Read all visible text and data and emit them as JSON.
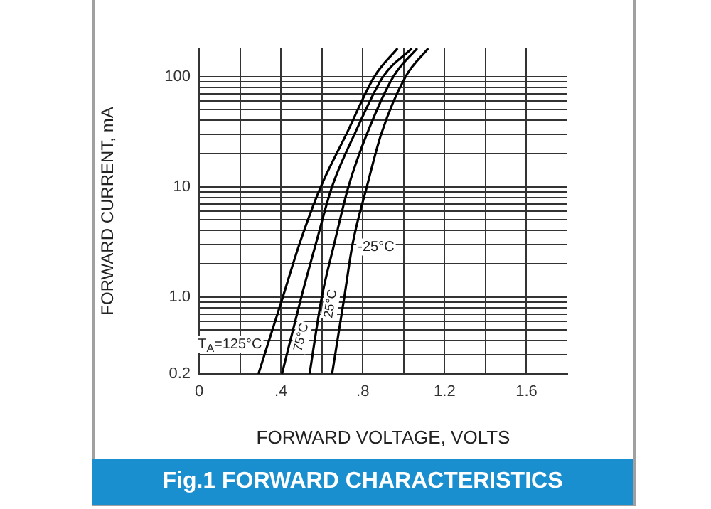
{
  "chart_data": {
    "type": "line",
    "title": "Fig.1 FORWARD CHARACTERISTICS",
    "xlabel": "FORWARD VOLTAGE, VOLTS",
    "ylabel": "FORWARD CURRENT, mA",
    "log": "y",
    "grid": true,
    "legend": false,
    "marker": "none",
    "line_style": "solid",
    "xlim": [
      0,
      1.8
    ],
    "xticks": [
      0,
      {
        "value": 0.2,
        "label": null
      },
      {
        "value": 0.4,
        "label": ".4"
      },
      {
        "value": 0.6,
        "label": null
      },
      {
        "value": 0.8,
        "label": ".8"
      },
      {
        "value": 1.0,
        "label": null
      },
      1.2,
      {
        "value": 1.4,
        "label": null
      },
      1.6
    ],
    "ylim": [
      0.2,
      180
    ],
    "yticks": [
      0.2,
      {
        "value": 0.3,
        "label": null
      },
      {
        "value": 0.4,
        "label": null
      },
      {
        "value": 0.5,
        "label": null
      },
      {
        "value": 0.6,
        "label": null
      },
      {
        "value": 0.7,
        "label": null
      },
      {
        "value": 0.8,
        "label": null
      },
      {
        "value": 0.9,
        "label": null
      },
      {
        "value": 1,
        "label": "1.0"
      },
      {
        "value": 2,
        "label": null
      },
      {
        "value": 3,
        "label": null
      },
      {
        "value": 4,
        "label": null
      },
      {
        "value": 5,
        "label": null
      },
      {
        "value": 6,
        "label": null
      },
      {
        "value": 7,
        "label": null
      },
      {
        "value": 8,
        "label": null
      },
      {
        "value": 9,
        "label": null
      },
      10,
      {
        "value": 20,
        "label": null
      },
      {
        "value": 30,
        "label": null
      },
      {
        "value": 40,
        "label": null
      },
      {
        "value": 50,
        "label": null
      },
      {
        "value": 60,
        "label": null
      },
      {
        "value": 70,
        "label": null
      },
      {
        "value": 80,
        "label": null
      },
      {
        "value": 90,
        "label": null
      },
      100
    ],
    "series": [
      {
        "name": "T$_{A}$=125°C",
        "color": "#000000",
        "x": [
          0.29,
          0.405,
          0.49,
          0.595,
          0.72,
          0.857,
          0.97
        ],
        "values": [
          0.2,
          0.94,
          3,
          10,
          30,
          100,
          180
        ]
      },
      {
        "name": "75°C",
        "color": "#000000",
        "x": [
          0.405,
          0.5,
          0.57,
          0.65,
          0.76,
          0.9,
          1.04
        ],
        "values": [
          0.2,
          1,
          3,
          10,
          30,
          100,
          180
        ]
      },
      {
        "name": "25°C",
        "color": "#000000",
        "x": [
          0.54,
          0.6,
          0.66,
          0.73,
          0.82,
          0.95,
          1.066
        ],
        "values": [
          0.2,
          1,
          3,
          10,
          30,
          100,
          180
        ]
      },
      {
        "name": "-25°C",
        "color": "#000000",
        "x": [
          0.65,
          0.71,
          0.75,
          0.82,
          0.89,
          1.01,
          1.12
        ],
        "values": [
          0.2,
          1,
          3,
          10,
          30,
          100,
          180
        ]
      }
    ]
  }
}
